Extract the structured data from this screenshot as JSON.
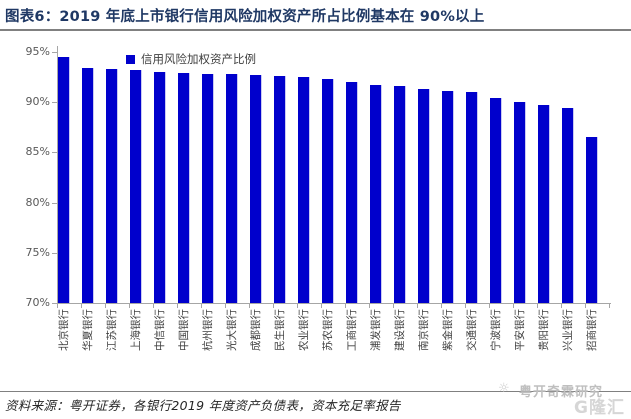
{
  "header": {
    "title": "图表6：2019 年底上市银行信用风险加权资产所占比例基本在 90%以上"
  },
  "chart_data": {
    "type": "bar",
    "legend": [
      "信用风险加权资产比例"
    ],
    "legend_position": "top",
    "categories": [
      "北京银行",
      "华夏银行",
      "江苏银行",
      "上海银行",
      "中信银行",
      "中国银行",
      "杭州银行",
      "光大银行",
      "成都银行",
      "民生银行",
      "农业银行",
      "苏农银行",
      "工商银行",
      "浦发银行",
      "建设银行",
      "南京银行",
      "紫金银行",
      "交通银行",
      "宁波银行",
      "平安银行",
      "贵阳银行",
      "兴业银行",
      "招商银行"
    ],
    "values": [
      94.5,
      93.4,
      93.3,
      93.2,
      93.0,
      92.9,
      92.8,
      92.8,
      92.7,
      92.6,
      92.5,
      92.3,
      92.0,
      91.7,
      91.6,
      91.3,
      91.1,
      91.0,
      90.4,
      90.0,
      89.7,
      89.4,
      86.5
    ],
    "ylim": [
      70,
      95
    ],
    "yticks": [
      70,
      75,
      80,
      85,
      90,
      95
    ],
    "ytick_suffix": "%",
    "grid": false,
    "bar_color": "#0000CC",
    "xlabel": "",
    "ylabel": ""
  },
  "footer": {
    "source_label": "资料来源：粤开证券，各银行2019 年度资产负债表，资本充足率报告"
  },
  "watermarks": {
    "sun_icon": "☼",
    "research_brand": "粤开奇霖研究",
    "logo_brand": "G隆汇"
  },
  "colors": {
    "bar": "#0000CC",
    "title": "#1F3864",
    "axis": "#A6A6A6",
    "ytick_label": "#595959",
    "category_label": "#3F3F3F"
  }
}
